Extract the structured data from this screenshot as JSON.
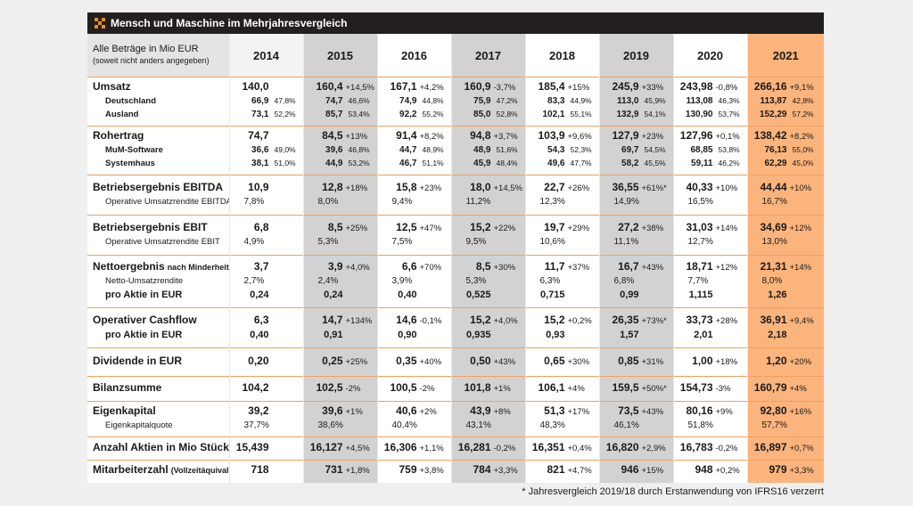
{
  "header": {
    "title": "Mensch und Maschine im Mehrjahresvergleich"
  },
  "table": {
    "caption": [
      "Alle Beträge in Mio EUR",
      "(soweit nicht anders angegeben)"
    ],
    "years": [
      "2014",
      "2015",
      "2016",
      "2017",
      "2018",
      "2019",
      "2020",
      "2021"
    ],
    "sections": [
      {
        "rows": [
          {
            "label": "Umsatz",
            "style": "main",
            "cells": [
              [
                "140,0"
              ],
              [
                "160,4",
                "+14,5%"
              ],
              [
                "167,1",
                "+4,2%"
              ],
              [
                "160,9",
                "-3,7%"
              ],
              [
                "185,4",
                "+15%"
              ],
              [
                "245,9",
                "+33%"
              ],
              [
                "243,98",
                "-0,8%"
              ],
              [
                "266,16",
                "+9,1%"
              ]
            ]
          },
          {
            "label": "Deutschland",
            "style": "sub",
            "cells": [
              [
                "66,9",
                "47,8%"
              ],
              [
                "74,7",
                "46,6%"
              ],
              [
                "74,9",
                "44,8%"
              ],
              [
                "75,9",
                "47,2%"
              ],
              [
                "83,3",
                "44,9%"
              ],
              [
                "113,0",
                "45,9%"
              ],
              [
                "113,08",
                "46,3%"
              ],
              [
                "113,87",
                "42,8%"
              ]
            ]
          },
          {
            "label": "Ausland",
            "style": "sub",
            "cells": [
              [
                "73,1",
                "52,2%"
              ],
              [
                "85,7",
                "53,4%"
              ],
              [
                "92,2",
                "55,2%"
              ],
              [
                "85,0",
                "52,8%"
              ],
              [
                "102,1",
                "55,1%"
              ],
              [
                "132,9",
                "54,1%"
              ],
              [
                "130,90",
                "53,7%"
              ],
              [
                "152,29",
                "57,2%"
              ]
            ]
          }
        ]
      },
      {
        "rows": [
          {
            "label": "Rohertrag",
            "style": "main",
            "cells": [
              [
                "74,7"
              ],
              [
                "84,5",
                "+13%"
              ],
              [
                "91,4",
                "+8,2%"
              ],
              [
                "94,8",
                "+3,7%"
              ],
              [
                "103,9",
                "+9,6%"
              ],
              [
                "127,9",
                "+23%"
              ],
              [
                "127,96",
                "+0,1%"
              ],
              [
                "138,42",
                "+8,2%"
              ]
            ]
          },
          {
            "label": "MuM-Software",
            "style": "sub",
            "cells": [
              [
                "36,6",
                "49,0%"
              ],
              [
                "39,6",
                "46,8%"
              ],
              [
                "44,7",
                "48,9%"
              ],
              [
                "48,9",
                "51,6%"
              ],
              [
                "54,3",
                "52,3%"
              ],
              [
                "69,7",
                "54,5%"
              ],
              [
                "68,85",
                "53,8%"
              ],
              [
                "76,13",
                "55,0%"
              ]
            ]
          },
          {
            "label": "Systemhaus",
            "style": "sub",
            "cells": [
              [
                "38,1",
                "51,0%"
              ],
              [
                "44,9",
                "53,2%"
              ],
              [
                "46,7",
                "51,1%"
              ],
              [
                "45,9",
                "48,4%"
              ],
              [
                "49,6",
                "47,7%"
              ],
              [
                "58,2",
                "45,5%"
              ],
              [
                "59,11",
                "46,2%"
              ],
              [
                "62,29",
                "45,0%"
              ]
            ]
          }
        ]
      },
      {
        "rows": [
          {
            "label": "Betriebsergebnis EBITDA",
            "style": "main",
            "cells": [
              [
                "10,9"
              ],
              [
                "12,8",
                "+18%"
              ],
              [
                "15,8",
                "+23%"
              ],
              [
                "18,0",
                "+14,5%"
              ],
              [
                "22,7",
                "+26%"
              ],
              [
                "36,55",
                "+61%*"
              ],
              [
                "40,33",
                "+10%"
              ],
              [
                "44,44",
                "+10%"
              ]
            ]
          },
          {
            "label": "Operative Umsatzrendite EBITDA",
            "style": "ratio",
            "cells": [
              [
                "7,8%"
              ],
              [
                "8,0%"
              ],
              [
                "9,4%"
              ],
              [
                "11,2%"
              ],
              [
                "12,3%"
              ],
              [
                "14,9%"
              ],
              [
                "16,5%"
              ],
              [
                "16,7%"
              ]
            ]
          }
        ]
      },
      {
        "rows": [
          {
            "label": "Betriebsergebnis EBIT",
            "style": "main",
            "cells": [
              [
                "6,8"
              ],
              [
                "8,5",
                "+25%"
              ],
              [
                "12,5",
                "+47%"
              ],
              [
                "15,2",
                "+22%"
              ],
              [
                "19,7",
                "+29%"
              ],
              [
                "27,2",
                "+38%"
              ],
              [
                "31,03",
                "+14%"
              ],
              [
                "34,69",
                "+12%"
              ]
            ]
          },
          {
            "label": "Operative Umsatzrendite EBIT",
            "style": "ratio",
            "cells": [
              [
                "4,9%"
              ],
              [
                "5,3%"
              ],
              [
                "7,5%"
              ],
              [
                "9,5%"
              ],
              [
                "10,6%"
              ],
              [
                "11,1%"
              ],
              [
                "12,7%"
              ],
              [
                "13,0%"
              ]
            ]
          }
        ]
      },
      {
        "rows": [
          {
            "label": "Nettoergebnis",
            "label_note": "nach Minderheiten",
            "style": "main",
            "cells": [
              [
                "3,7"
              ],
              [
                "3,9",
                "+4,0%"
              ],
              [
                "6,6",
                "+70%"
              ],
              [
                "8,5",
                "+30%"
              ],
              [
                "11,7",
                "+37%"
              ],
              [
                "16,7",
                "+43%"
              ],
              [
                "18,71",
                "+12%"
              ],
              [
                "21,31",
                "+14%"
              ]
            ]
          },
          {
            "label": "Netto-Umsatzrendite",
            "style": "ratio",
            "cells": [
              [
                "2,7%"
              ],
              [
                "2,4%"
              ],
              [
                "3,9%"
              ],
              [
                "5,3%"
              ],
              [
                "6,3%"
              ],
              [
                "6,8%"
              ],
              [
                "7,7%"
              ],
              [
                "8,0%"
              ]
            ]
          },
          {
            "label": "pro Aktie in EUR",
            "style": "per-share",
            "cells": [
              [
                "0,24"
              ],
              [
                "0,24"
              ],
              [
                "0,40"
              ],
              [
                "0,525"
              ],
              [
                "0,715"
              ],
              [
                "0,99"
              ],
              [
                "1,115"
              ],
              [
                "1,26"
              ]
            ]
          }
        ]
      },
      {
        "rows": [
          {
            "label": "Operativer Cashflow",
            "style": "main",
            "cells": [
              [
                "6,3"
              ],
              [
                "14,7",
                "+134%"
              ],
              [
                "14,6",
                "-0,1%"
              ],
              [
                "15,2",
                "+4,0%"
              ],
              [
                "15,2",
                "+0,2%"
              ],
              [
                "26,35",
                "+73%*"
              ],
              [
                "33,73",
                "+28%"
              ],
              [
                "36,91",
                "+9,4%"
              ]
            ]
          },
          {
            "label": "pro Aktie in EUR",
            "style": "per-share",
            "cells": [
              [
                "0,40"
              ],
              [
                "0,91"
              ],
              [
                "0,90"
              ],
              [
                "0,935"
              ],
              [
                "0,93"
              ],
              [
                "1,57"
              ],
              [
                "2,01"
              ],
              [
                "2,18"
              ]
            ]
          }
        ]
      },
      {
        "rows": [
          {
            "label": "Dividende in EUR",
            "style": "main",
            "cells": [
              [
                "0,20"
              ],
              [
                "0,25",
                "+25%"
              ],
              [
                "0,35",
                "+40%"
              ],
              [
                "0,50",
                "+43%"
              ],
              [
                "0,65",
                "+30%"
              ],
              [
                "0,85",
                "+31%"
              ],
              [
                "1,00",
                "+18%"
              ],
              [
                "1,20",
                "+20%"
              ]
            ]
          }
        ]
      },
      {
        "rows": [
          {
            "label": "Bilanzsumme",
            "style": "main",
            "cells": [
              [
                "104,2"
              ],
              [
                "102,5",
                "-2%"
              ],
              [
                "100,5",
                "-2%"
              ],
              [
                "101,8",
                "+1%"
              ],
              [
                "106,1",
                "+4%"
              ],
              [
                "159,5",
                "+50%*"
              ],
              [
                "154,73",
                "-3%"
              ],
              [
                "160,79",
                "+4%"
              ]
            ]
          }
        ]
      },
      {
        "rows": [
          {
            "label": "Eigenkapital",
            "style": "main",
            "cells": [
              [
                "39,2"
              ],
              [
                "39,6",
                "+1%"
              ],
              [
                "40,6",
                "+2%"
              ],
              [
                "43,9",
                "+8%"
              ],
              [
                "51,3",
                "+17%"
              ],
              [
                "73,5",
                "+43%"
              ],
              [
                "80,16",
                "+9%"
              ],
              [
                "92,80",
                "+16%"
              ]
            ]
          },
          {
            "label": "Eigenkapitalquote",
            "style": "ratio",
            "cells": [
              [
                "37,7%"
              ],
              [
                "38,6%"
              ],
              [
                "40,4%"
              ],
              [
                "43,1%"
              ],
              [
                "48,3%"
              ],
              [
                "46,1%"
              ],
              [
                "51,8%"
              ],
              [
                "57,7%"
              ]
            ]
          }
        ]
      },
      {
        "rows": [
          {
            "label": "Anzahl Aktien in Mio Stück",
            "style": "main",
            "cells": [
              [
                "15,439"
              ],
              [
                "16,127",
                "+4,5%"
              ],
              [
                "16,306",
                "+1,1%"
              ],
              [
                "16,281",
                "-0,2%"
              ],
              [
                "16,351",
                "+0,4%"
              ],
              [
                "16,820",
                "+2,9%"
              ],
              [
                "16,783",
                "-0,2%"
              ],
              [
                "16,897",
                "+0,7%"
              ]
            ]
          }
        ]
      },
      {
        "rows": [
          {
            "label": "Mitarbeiterzahl",
            "label_note": "(Vollzeitäquivalent)",
            "style": "main",
            "cells": [
              [
                "718"
              ],
              [
                "731",
                "+1,8%"
              ],
              [
                "759",
                "+3,8%"
              ],
              [
                "784",
                "+3,3%"
              ],
              [
                "821",
                "+4,7%"
              ],
              [
                "946",
                "+15%"
              ],
              [
                "948",
                "+0,2%"
              ],
              [
                "979",
                "+3,3%"
              ]
            ]
          }
        ]
      }
    ]
  },
  "footnote": "* Jahresvergleich 2019/18 durch Erstanwendung von IFRS16 verzerrt"
}
